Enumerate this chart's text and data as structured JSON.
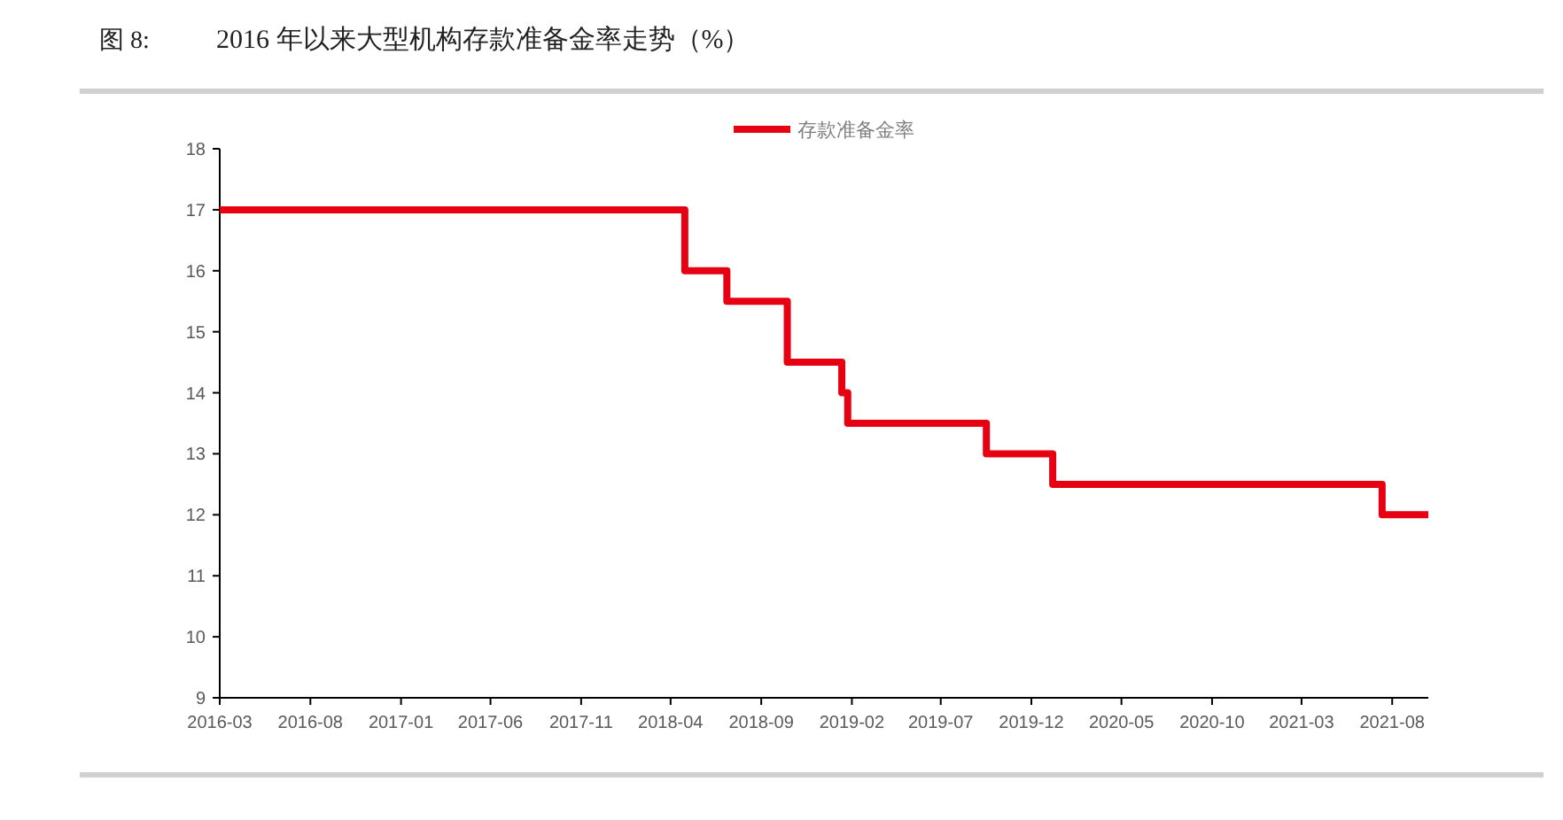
{
  "chart_data": {
    "type": "step",
    "title": "2016 年以来大型机构存款准备金率走势（%）",
    "annotations": [
      "图 8:"
    ],
    "x": [
      "2016-03-01",
      "2018-04-25",
      "2018-07-05",
      "2018-10-15",
      "2019-01-15",
      "2019-01-25",
      "2019-09-16",
      "2020-01-06",
      "2021-07-15",
      "2021-10-01"
    ],
    "series": [
      {
        "name": "存款准备金率",
        "color": "#e60012",
        "values": [
          17,
          16,
          15.5,
          14.5,
          14,
          13.5,
          13,
          12.5,
          12,
          12
        ]
      }
    ],
    "xlim": [
      "2016-03",
      "2021-10"
    ],
    "xticks": [
      "2016-03",
      "2016-08",
      "2017-01",
      "2017-06",
      "2017-11",
      "2018-04",
      "2018-09",
      "2019-02",
      "2019-07",
      "2019-12",
      "2020-05",
      "2020-10",
      "2021-03",
      "2021-08"
    ],
    "ylim": [
      9,
      18
    ],
    "yticks": [
      9,
      10,
      11,
      12,
      13,
      14,
      15,
      16,
      17,
      18
    ],
    "legend": "top"
  }
}
